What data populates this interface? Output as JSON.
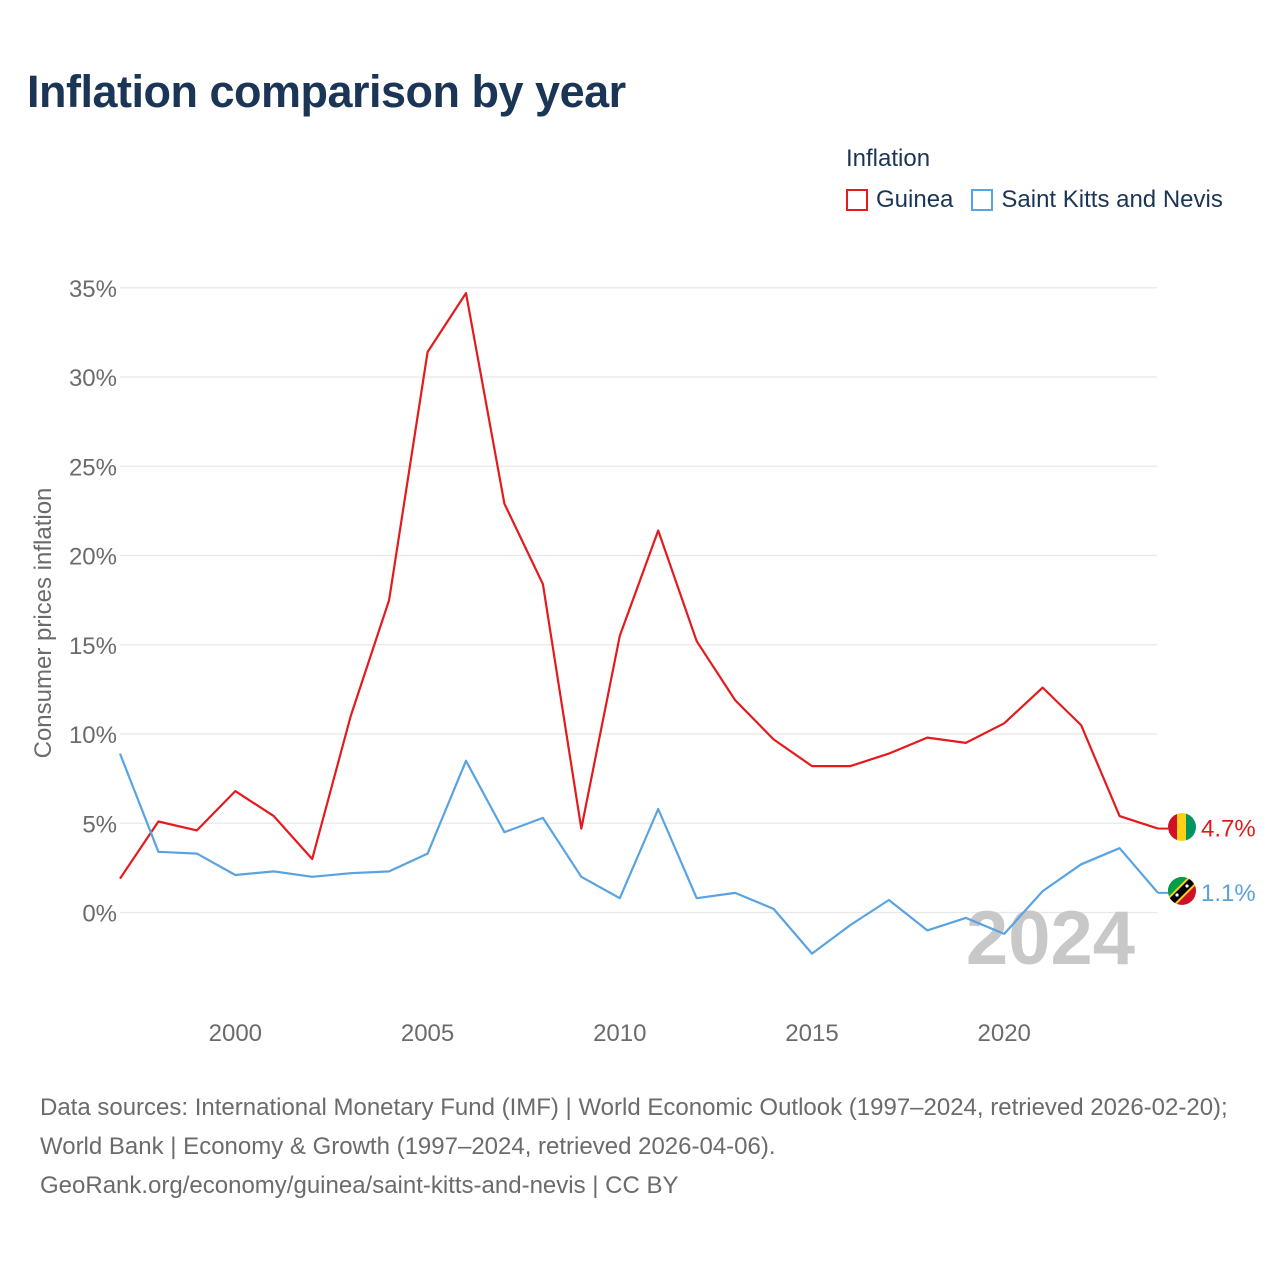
{
  "title": "Inflation comparison by year",
  "legend": {
    "title": "Inflation",
    "items": [
      {
        "label": "Guinea",
        "color": "#e41a1c"
      },
      {
        "label": "Saint Kitts and Nevis",
        "color": "#5aa3e2"
      }
    ]
  },
  "chart_data": {
    "type": "line",
    "ylabel": "Consumer prices inflation",
    "xlabel": "",
    "x": [
      1997,
      1998,
      1999,
      2000,
      2001,
      2002,
      2003,
      2004,
      2005,
      2006,
      2007,
      2008,
      2009,
      2010,
      2011,
      2012,
      2013,
      2014,
      2015,
      2016,
      2017,
      2018,
      2019,
      2020,
      2021,
      2022,
      2023,
      2024
    ],
    "xlim": [
      1997,
      2024
    ],
    "ylim": [
      -5,
      35
    ],
    "x_ticks": [
      2000,
      2005,
      2010,
      2015,
      2020
    ],
    "y_ticks": [
      0,
      5,
      10,
      15,
      20,
      25,
      30,
      35
    ],
    "y_tick_labels": [
      "0%",
      "5%",
      "10%",
      "15%",
      "20%",
      "25%",
      "30%",
      "35%"
    ],
    "grid": true,
    "year_watermark": "2024",
    "series": [
      {
        "name": "Guinea",
        "color": "#e41a1c",
        "end_label": "4.7%",
        "values": [
          1.9,
          5.1,
          4.6,
          6.8,
          5.4,
          3.0,
          11.0,
          17.5,
          31.4,
          34.7,
          22.9,
          18.4,
          4.7,
          15.5,
          21.4,
          15.2,
          11.9,
          9.7,
          8.2,
          8.2,
          8.9,
          9.8,
          9.5,
          10.6,
          12.6,
          10.5,
          5.4,
          4.7
        ]
      },
      {
        "name": "Saint Kitts and Nevis",
        "color": "#5aa3e2",
        "end_label": "1.1%",
        "values": [
          8.9,
          3.4,
          3.3,
          2.1,
          2.3,
          2.0,
          2.2,
          2.3,
          3.3,
          8.5,
          4.5,
          5.3,
          2.0,
          0.8,
          5.8,
          0.8,
          1.1,
          0.2,
          -2.3,
          -0.7,
          0.7,
          -1.0,
          -0.3,
          -1.2,
          1.2,
          2.7,
          3.6,
          1.1
        ]
      }
    ]
  },
  "footer": {
    "line1": "Data sources: International Monetary Fund (IMF) | World Economic Outlook (1997–2024, retrieved 2026-02-20); World Bank | Economy & Growth (1997–2024, retrieved 2026-04-06).",
    "line2": "GeoRank.org/economy/guinea/saint-kitts-and-nevis | CC BY"
  }
}
